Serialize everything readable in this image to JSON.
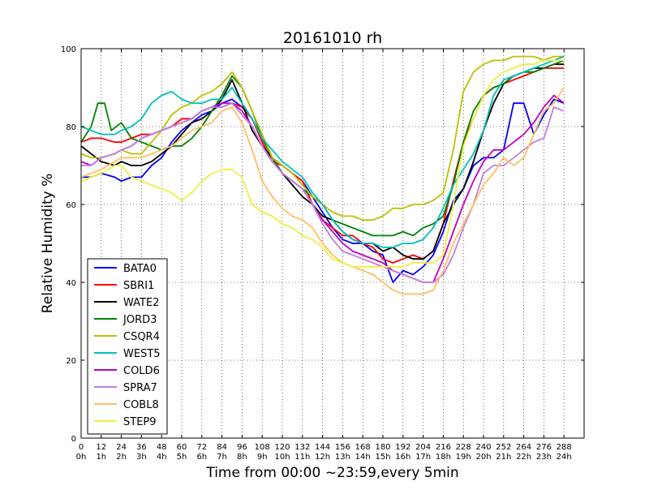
{
  "chart_data": {
    "type": "line",
    "title": "20161010 rh",
    "xlabel": "Time from 00:00 ~23:59,every 5min",
    "ylabel": "Relative Humidity %",
    "xlim": [
      0,
      300
    ],
    "ylim": [
      0,
      100
    ],
    "grid": true,
    "legend_position": "lower-left",
    "x_ticks": [
      {
        "value": 0,
        "label": "0",
        "sublabel": "0h"
      },
      {
        "value": 12,
        "label": "12",
        "sublabel": "1h"
      },
      {
        "value": 24,
        "label": "24",
        "sublabel": "2h"
      },
      {
        "value": 36,
        "label": "36",
        "sublabel": "3h"
      },
      {
        "value": 48,
        "label": "48",
        "sublabel": "4h"
      },
      {
        "value": 60,
        "label": "60",
        "sublabel": "5h"
      },
      {
        "value": 72,
        "label": "72",
        "sublabel": "6h"
      },
      {
        "value": 84,
        "label": "84",
        "sublabel": "7h"
      },
      {
        "value": 96,
        "label": "96",
        "sublabel": "8h"
      },
      {
        "value": 108,
        "label": "108",
        "sublabel": "9h"
      },
      {
        "value": 120,
        "label": "120",
        "sublabel": "10h"
      },
      {
        "value": 132,
        "label": "132",
        "sublabel": "11h"
      },
      {
        "value": 144,
        "label": "144",
        "sublabel": "12h"
      },
      {
        "value": 156,
        "label": "156",
        "sublabel": "13h"
      },
      {
        "value": 168,
        "label": "168",
        "sublabel": "14h"
      },
      {
        "value": 180,
        "label": "180",
        "sublabel": "15h"
      },
      {
        "value": 192,
        "label": "192",
        "sublabel": "16h"
      },
      {
        "value": 204,
        "label": "204",
        "sublabel": "17h"
      },
      {
        "value": 216,
        "label": "216",
        "sublabel": "18h"
      },
      {
        "value": 228,
        "label": "228",
        "sublabel": "19h"
      },
      {
        "value": 240,
        "label": "240",
        "sublabel": "20h"
      },
      {
        "value": 252,
        "label": "252",
        "sublabel": "21h"
      },
      {
        "value": 264,
        "label": "264",
        "sublabel": "22h"
      },
      {
        "value": 276,
        "label": "276",
        "sublabel": "23h"
      },
      {
        "value": 288,
        "label": "288",
        "sublabel": "24h"
      }
    ],
    "y_ticks": [
      0,
      20,
      40,
      60,
      80,
      100
    ],
    "series": [
      {
        "name": "BATA0",
        "color": "#0000ff",
        "x": [
          0,
          6,
          12,
          20,
          24,
          30,
          36,
          42,
          48,
          54,
          60,
          66,
          72,
          78,
          84,
          90,
          96,
          102,
          108,
          114,
          120,
          126,
          132,
          138,
          144,
          150,
          156,
          162,
          168,
          174,
          180,
          186,
          192,
          198,
          204,
          210,
          216,
          222,
          228,
          234,
          240,
          246,
          252,
          258,
          264,
          270,
          276,
          282,
          288
        ],
        "y": [
          67,
          67,
          68,
          67,
          66,
          67,
          67,
          70,
          72,
          76,
          79,
          81,
          83,
          84,
          86,
          87,
          85,
          82,
          77,
          72,
          70,
          68,
          66,
          62,
          58,
          54,
          51,
          50,
          50,
          48,
          47,
          40,
          43,
          42,
          44,
          47,
          53,
          61,
          64,
          70,
          72,
          72,
          74,
          86,
          86,
          78,
          83,
          87,
          86
        ]
      },
      {
        "name": "SBRI1",
        "color": "#ff0000",
        "x": [
          0,
          6,
          12,
          20,
          24,
          30,
          36,
          42,
          48,
          54,
          60,
          66,
          72,
          78,
          84,
          90,
          96,
          102,
          108,
          114,
          120,
          126,
          132,
          138,
          144,
          150,
          156,
          162,
          168,
          174,
          180,
          186,
          192,
          198,
          204,
          210,
          216,
          222,
          228,
          234,
          240,
          246,
          252,
          258,
          264,
          270,
          276,
          282,
          288
        ],
        "y": [
          76,
          77,
          77,
          76,
          76,
          77,
          78,
          78,
          79,
          80,
          82,
          82,
          84,
          85,
          85,
          86,
          85,
          82,
          76,
          71,
          70,
          68,
          66,
          60,
          56,
          54,
          52,
          52,
          50,
          49,
          46,
          45,
          46,
          47,
          46,
          48,
          55,
          66,
          76,
          82,
          88,
          90,
          91,
          92,
          93,
          94,
          95,
          95,
          95
        ]
      },
      {
        "name": "WATE2",
        "color": "#000000",
        "x": [
          0,
          6,
          12,
          20,
          24,
          30,
          36,
          42,
          48,
          54,
          60,
          66,
          72,
          78,
          84,
          90,
          96,
          102,
          108,
          114,
          120,
          126,
          132,
          138,
          144,
          150,
          156,
          162,
          168,
          174,
          180,
          186,
          192,
          198,
          204,
          210,
          216,
          222,
          228,
          234,
          240,
          246,
          252,
          258,
          264,
          270,
          276,
          282,
          288
        ],
        "y": [
          75,
          73,
          71,
          70,
          71,
          70,
          70,
          71,
          73,
          75,
          78,
          81,
          82,
          84,
          87,
          92,
          86,
          79,
          75,
          72,
          68,
          65,
          62,
          60,
          57,
          56,
          53,
          51,
          50,
          50,
          48,
          49,
          47,
          46,
          46,
          48,
          55,
          60,
          64,
          71,
          79,
          86,
          91,
          93,
          94,
          95,
          95,
          96,
          96
        ]
      },
      {
        "name": "JORD3",
        "color": "#008000",
        "x": [
          0,
          6,
          10,
          14,
          18,
          24,
          30,
          36,
          42,
          48,
          54,
          60,
          66,
          72,
          78,
          84,
          90,
          96,
          102,
          108,
          114,
          120,
          126,
          132,
          138,
          144,
          150,
          156,
          162,
          168,
          174,
          180,
          186,
          192,
          198,
          204,
          210,
          216,
          222,
          228,
          234,
          240,
          246,
          252,
          258,
          264,
          270,
          276,
          282,
          288
        ],
        "y": [
          76,
          80,
          86,
          86,
          79,
          81,
          77,
          76,
          75,
          74,
          75,
          75,
          77,
          80,
          84,
          88,
          93,
          90,
          84,
          77,
          72,
          68,
          66,
          64,
          62,
          60,
          56,
          55,
          54,
          53,
          52,
          52,
          52,
          53,
          52,
          54,
          55,
          57,
          65,
          76,
          84,
          88,
          90,
          91,
          93,
          94,
          94,
          95,
          96,
          97
        ]
      },
      {
        "name": "CSQR4",
        "color": "#bfbf00",
        "x": [
          0,
          6,
          12,
          20,
          24,
          30,
          36,
          42,
          48,
          54,
          60,
          66,
          72,
          78,
          84,
          90,
          96,
          102,
          108,
          114,
          120,
          126,
          132,
          138,
          144,
          150,
          156,
          162,
          168,
          174,
          180,
          186,
          192,
          198,
          204,
          210,
          216,
          222,
          228,
          234,
          240,
          246,
          252,
          258,
          264,
          270,
          276,
          282,
          288
        ],
        "y": [
          73,
          72,
          72,
          73,
          74,
          73,
          73,
          76,
          79,
          83,
          85,
          86,
          88,
          89,
          91,
          94,
          90,
          84,
          78,
          72,
          70,
          68,
          65,
          62,
          60,
          58,
          57,
          57,
          56,
          56,
          57,
          59,
          59,
          60,
          60,
          61,
          63,
          74,
          89,
          94,
          96,
          97,
          97,
          98,
          98,
          98,
          97,
          98,
          98
        ]
      },
      {
        "name": "WEST5",
        "color": "#00bfbf",
        "x": [
          0,
          6,
          12,
          20,
          24,
          30,
          36,
          42,
          48,
          54,
          60,
          66,
          72,
          78,
          84,
          90,
          96,
          102,
          108,
          114,
          120,
          126,
          132,
          138,
          144,
          150,
          156,
          162,
          168,
          174,
          180,
          186,
          192,
          198,
          204,
          210,
          216,
          222,
          228,
          234,
          240,
          246,
          252,
          258,
          264,
          270,
          276,
          282,
          288
        ],
        "y": [
          80,
          79,
          78,
          78,
          79,
          80,
          82,
          86,
          88,
          89,
          87,
          86,
          86,
          87,
          87,
          90,
          86,
          82,
          77,
          74,
          71,
          69,
          67,
          63,
          60,
          56,
          53,
          51,
          50,
          50,
          49,
          49,
          50,
          50,
          51,
          54,
          59,
          65,
          69,
          73,
          79,
          88,
          92,
          93,
          94,
          95,
          96,
          97,
          98
        ]
      },
      {
        "name": "COLD6",
        "color": "#bf00bf",
        "x": [
          0,
          6,
          12,
          20,
          24,
          30,
          36,
          42,
          48,
          54,
          60,
          66,
          72,
          78,
          84,
          90,
          96,
          102,
          108,
          114,
          120,
          126,
          132,
          138,
          144,
          150,
          156,
          162,
          168,
          174,
          180,
          186,
          192,
          198,
          204,
          210,
          216,
          222,
          228,
          234,
          240,
          246,
          252,
          258,
          264,
          270,
          276,
          282,
          288
        ],
        "y": [
          71,
          70,
          72,
          73,
          74,
          75,
          77,
          78,
          79,
          80,
          81,
          82,
          84,
          85,
          86,
          86,
          84,
          80,
          75,
          71,
          68,
          66,
          64,
          60,
          56,
          53,
          50,
          48,
          47,
          46,
          45,
          43,
          42,
          41,
          40,
          40,
          46,
          53,
          60,
          66,
          71,
          74,
          74,
          76,
          78,
          81,
          85,
          88,
          86
        ]
      },
      {
        "name": "SPRA7",
        "color": "#bf80df",
        "x": [
          0,
          6,
          12,
          20,
          24,
          30,
          36,
          42,
          48,
          54,
          60,
          66,
          72,
          78,
          84,
          90,
          96,
          102,
          108,
          114,
          120,
          126,
          132,
          138,
          144,
          150,
          156,
          162,
          168,
          174,
          180,
          186,
          192,
          198,
          204,
          210,
          216,
          222,
          228,
          234,
          240,
          246,
          252,
          258,
          264,
          270,
          276,
          282,
          288
        ],
        "y": [
          70,
          70,
          72,
          73,
          74,
          75,
          77,
          78,
          79,
          80,
          81,
          82,
          84,
          85,
          85,
          86,
          83,
          80,
          75,
          71,
          68,
          66,
          64,
          60,
          55,
          51,
          48,
          47,
          46,
          45,
          44,
          43,
          42,
          41,
          40,
          40,
          42,
          47,
          54,
          60,
          68,
          70,
          70,
          72,
          74,
          76,
          77,
          85,
          84
        ]
      },
      {
        "name": "COBL8",
        "color": "#ffbf60",
        "x": [
          0,
          6,
          12,
          20,
          24,
          30,
          36,
          42,
          48,
          54,
          60,
          66,
          72,
          78,
          84,
          90,
          96,
          102,
          108,
          114,
          120,
          126,
          132,
          138,
          144,
          150,
          156,
          162,
          168,
          174,
          180,
          186,
          192,
          198,
          204,
          210,
          216,
          222,
          228,
          234,
          240,
          246,
          252,
          258,
          264,
          270,
          276,
          282,
          288
        ],
        "y": [
          67,
          68,
          69,
          71,
          72,
          72,
          72,
          73,
          74,
          75,
          77,
          79,
          80,
          81,
          84,
          85,
          81,
          74,
          66,
          62,
          59,
          57,
          56,
          54,
          50,
          47,
          45,
          44,
          43,
          42,
          40,
          38,
          37,
          37,
          37,
          38,
          43,
          50,
          55,
          60,
          65,
          68,
          72,
          70,
          72,
          78,
          84,
          86,
          90
        ]
      },
      {
        "name": "STEP9",
        "color": "#f0f040",
        "x": [
          0,
          6,
          12,
          20,
          24,
          30,
          36,
          42,
          48,
          54,
          60,
          66,
          72,
          78,
          84,
          90,
          96,
          102,
          108,
          114,
          120,
          126,
          132,
          138,
          144,
          150,
          156,
          162,
          168,
          174,
          180,
          186,
          192,
          198,
          204,
          210,
          216,
          222,
          228,
          234,
          240,
          246,
          252,
          258,
          264,
          270,
          276,
          282,
          288
        ],
        "y": [
          66,
          67,
          68,
          70,
          70,
          67,
          66,
          65,
          64,
          63,
          61,
          63,
          66,
          68,
          69,
          69,
          67,
          60,
          58,
          57,
          55,
          54,
          52,
          51,
          49,
          46,
          45,
          44,
          44,
          44,
          44,
          44,
          44,
          45,
          45,
          45,
          47,
          60,
          75,
          82,
          88,
          92,
          94,
          95,
          96,
          96,
          97,
          97,
          97
        ]
      }
    ]
  }
}
